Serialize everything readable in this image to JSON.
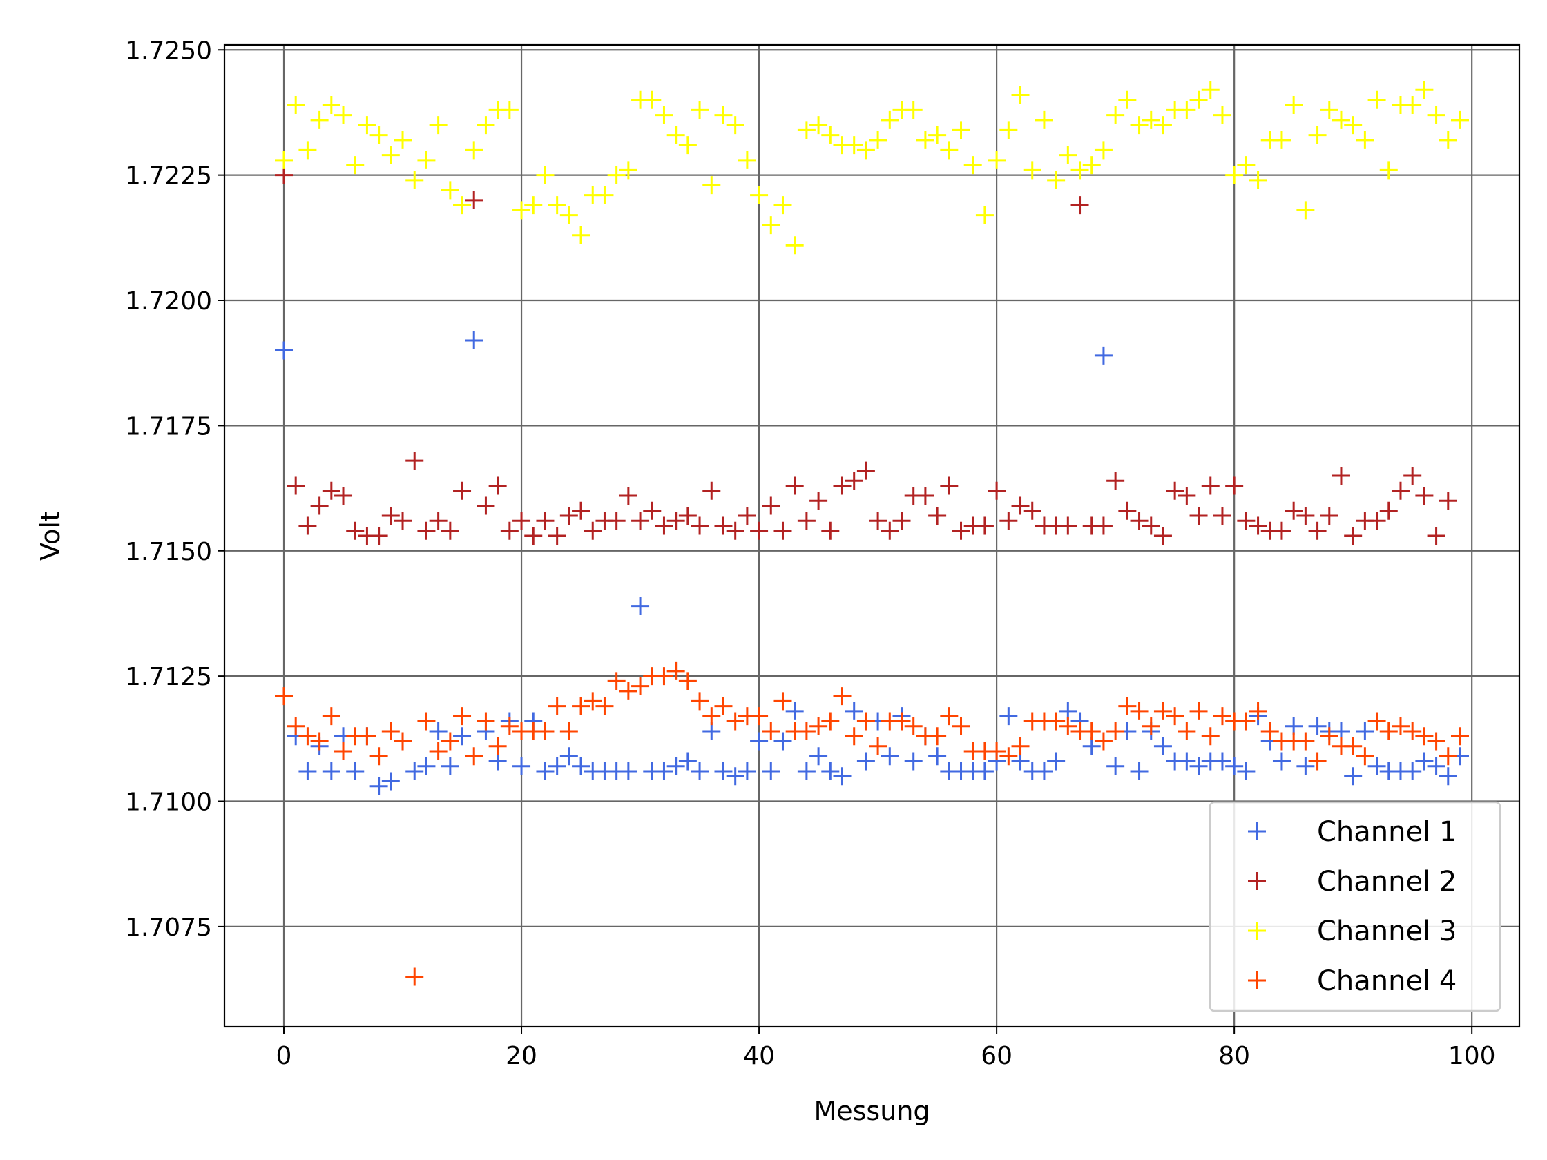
{
  "chart_data": {
    "type": "scatter",
    "marker": "+",
    "title": "",
    "xlabel": "Messung",
    "ylabel": "Volt",
    "xlim": [
      -5,
      104
    ],
    "ylim": [
      1.7055,
      1.7251
    ],
    "xticks": [
      0,
      20,
      40,
      60,
      80,
      100
    ],
    "xtick_labels": [
      "0",
      "20",
      "40",
      "60",
      "80",
      "100"
    ],
    "yticks": [
      1.7075,
      1.71,
      1.7125,
      1.715,
      1.7175,
      1.72,
      1.7225,
      1.725
    ],
    "ytick_labels": [
      "1.7075",
      "1.7100",
      "1.7125",
      "1.7150",
      "1.7175",
      "1.7200",
      "1.7225",
      "1.7250"
    ],
    "grid": true,
    "legend_position": "bottom-right",
    "colors": {
      "grid": "#666666",
      "axes": "#000000",
      "background": "#ffffff"
    },
    "series": [
      {
        "name": "Channel 1",
        "color": "#4169e1",
        "values": [
          1.719,
          1.7113,
          1.7106,
          1.7111,
          1.7106,
          1.7113,
          1.7106,
          1.7113,
          1.7103,
          1.7104,
          1.7112,
          1.7106,
          1.7107,
          1.7114,
          1.7107,
          1.7113,
          1.7192,
          1.7114,
          1.7108,
          1.7116,
          1.7107,
          1.7116,
          1.7106,
          1.7107,
          1.7109,
          1.7107,
          1.7106,
          1.7106,
          1.7106,
          1.7106,
          1.7139,
          1.7106,
          1.7106,
          1.7107,
          1.7108,
          1.7106,
          1.7114,
          1.7106,
          1.7105,
          1.7106,
          1.7112,
          1.7106,
          1.7112,
          1.7118,
          1.7106,
          1.7109,
          1.7106,
          1.7105,
          1.7118,
          1.7108,
          1.7116,
          1.7109,
          1.7117,
          1.7108,
          1.7113,
          1.7109,
          1.7106,
          1.7106,
          1.7106,
          1.7106,
          1.7108,
          1.7117,
          1.7108,
          1.7106,
          1.7106,
          1.7108,
          1.7118,
          1.7116,
          1.7111,
          1.7189,
          1.7107,
          1.7114,
          1.7106,
          1.7114,
          1.7111,
          1.7108,
          1.7108,
          1.7107,
          1.7108,
          1.7108,
          1.7107,
          1.7106,
          1.7117,
          1.7112,
          1.7108,
          1.7115,
          1.7107,
          1.7115,
          1.7114,
          1.7114,
          1.7105,
          1.7114,
          1.7107,
          1.7106,
          1.7106,
          1.7106,
          1.7108,
          1.7107,
          1.7105,
          1.7109
        ]
      },
      {
        "name": "Channel 2",
        "color": "#b22222",
        "values": [
          1.7225,
          1.7163,
          1.7155,
          1.7159,
          1.7162,
          1.7161,
          1.7154,
          1.7153,
          1.7153,
          1.7157,
          1.7156,
          1.7168,
          1.7154,
          1.7156,
          1.7154,
          1.7162,
          1.722,
          1.7159,
          1.7163,
          1.7154,
          1.7156,
          1.7153,
          1.7156,
          1.7153,
          1.7157,
          1.7158,
          1.7154,
          1.7156,
          1.7156,
          1.7161,
          1.7156,
          1.7158,
          1.7155,
          1.7156,
          1.7157,
          1.7155,
          1.7162,
          1.7155,
          1.7154,
          1.7157,
          1.7154,
          1.7159,
          1.7154,
          1.7163,
          1.7156,
          1.716,
          1.7154,
          1.7163,
          1.7164,
          1.7166,
          1.7156,
          1.7154,
          1.7156,
          1.7161,
          1.7161,
          1.7157,
          1.7163,
          1.7154,
          1.7155,
          1.7155,
          1.7162,
          1.7156,
          1.7159,
          1.7158,
          1.7155,
          1.7155,
          1.7155,
          1.7219,
          1.7155,
          1.7155,
          1.7164,
          1.7158,
          1.7156,
          1.7155,
          1.7153,
          1.7162,
          1.7161,
          1.7157,
          1.7163,
          1.7157,
          1.7163,
          1.7156,
          1.7155,
          1.7154,
          1.7154,
          1.7158,
          1.7157,
          1.7154,
          1.7157,
          1.7165,
          1.7153,
          1.7156,
          1.7156,
          1.7158,
          1.7162,
          1.7165,
          1.7161,
          1.7153,
          1.716
        ]
      },
      {
        "name": "Channel 3",
        "color": "#ffff00",
        "values": [
          1.7228,
          1.7239,
          1.723,
          1.7236,
          1.7239,
          1.7237,
          1.7227,
          1.7235,
          1.7233,
          1.7229,
          1.7232,
          1.7224,
          1.7228,
          1.7235,
          1.7222,
          1.7219,
          1.723,
          1.7235,
          1.7238,
          1.7238,
          1.7218,
          1.7219,
          1.7225,
          1.7219,
          1.7217,
          1.7213,
          1.7221,
          1.7221,
          1.7225,
          1.7226,
          1.724,
          1.724,
          1.7237,
          1.7233,
          1.7231,
          1.7238,
          1.7223,
          1.7237,
          1.7235,
          1.7228,
          1.7221,
          1.7215,
          1.7219,
          1.7211,
          1.7234,
          1.7235,
          1.7233,
          1.7231,
          1.7231,
          1.723,
          1.7232,
          1.7236,
          1.7238,
          1.7238,
          1.7232,
          1.7233,
          1.723,
          1.7234,
          1.7227,
          1.7217,
          1.7228,
          1.7234,
          1.7241,
          1.7226,
          1.7236,
          1.7224,
          1.7229,
          1.7226,
          1.7227,
          1.723,
          1.7237,
          1.724,
          1.7235,
          1.7236,
          1.7235,
          1.7238,
          1.7238,
          1.724,
          1.7242,
          1.7237,
          1.7225,
          1.7227,
          1.7224,
          1.7232,
          1.7232,
          1.7239,
          1.7218,
          1.7233,
          1.7238,
          1.7236,
          1.7235,
          1.7232,
          1.724,
          1.7226,
          1.7239,
          1.7239,
          1.7242,
          1.7237,
          1.7232,
          1.7236
        ]
      },
      {
        "name": "Channel 4",
        "color": "#ff4500",
        "values": [
          1.7121,
          1.7115,
          1.7113,
          1.7112,
          1.7117,
          1.711,
          1.7113,
          1.7113,
          1.7109,
          1.7114,
          1.7112,
          1.7065,
          1.7116,
          1.711,
          1.7112,
          1.7117,
          1.7109,
          1.7116,
          1.7111,
          1.7115,
          1.7114,
          1.7114,
          1.7114,
          1.7119,
          1.7114,
          1.7119,
          1.712,
          1.7119,
          1.7124,
          1.7122,
          1.7123,
          1.7125,
          1.7125,
          1.7126,
          1.7124,
          1.712,
          1.7117,
          1.7119,
          1.7116,
          1.7117,
          1.7117,
          1.7114,
          1.712,
          1.7114,
          1.7114,
          1.7115,
          1.7116,
          1.7121,
          1.7113,
          1.7116,
          1.7111,
          1.7116,
          1.7116,
          1.7115,
          1.7113,
          1.7113,
          1.7117,
          1.7115,
          1.711,
          1.711,
          1.711,
          1.7109,
          1.7111,
          1.7116,
          1.7116,
          1.7116,
          1.7115,
          1.7114,
          1.7114,
          1.7112,
          1.7114,
          1.7119,
          1.7118,
          1.7115,
          1.7118,
          1.7117,
          1.7114,
          1.7118,
          1.7113,
          1.7117,
          1.7116,
          1.7116,
          1.7118,
          1.7114,
          1.7112,
          1.7112,
          1.7112,
          1.7108,
          1.7113,
          1.7111,
          1.7111,
          1.7109,
          1.7116,
          1.7114,
          1.7115,
          1.7114,
          1.7113,
          1.7112,
          1.7109,
          1.7113
        ]
      }
    ]
  }
}
